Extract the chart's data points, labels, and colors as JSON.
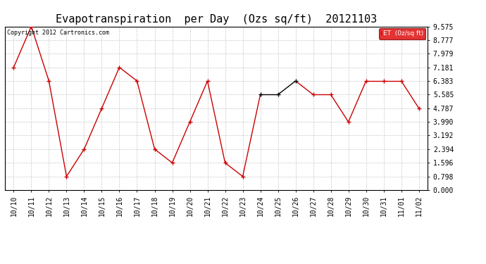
{
  "title": "Evapotranspiration  per Day  (Ozs sq/ft)  20121103",
  "copyright": "Copyright 2012 Cartronics.com",
  "legend_label": "ET  (0z/sq ft)",
  "legend_bg": "#dd0000",
  "legend_text_color": "#ffffff",
  "x_labels": [
    "10/10",
    "10/11",
    "10/12",
    "10/13",
    "10/14",
    "10/15",
    "10/16",
    "10/17",
    "10/18",
    "10/19",
    "10/20",
    "10/21",
    "10/22",
    "10/23",
    "10/24",
    "10/25",
    "10/26",
    "10/27",
    "10/28",
    "10/29",
    "10/30",
    "10/31",
    "11/01",
    "11/02"
  ],
  "y_values": [
    7.181,
    9.575,
    6.383,
    0.798,
    2.394,
    4.787,
    7.181,
    6.383,
    2.394,
    1.596,
    3.99,
    6.383,
    1.596,
    0.798,
    5.585,
    5.585,
    6.383,
    5.585,
    5.585,
    3.99,
    6.383,
    6.383,
    6.383,
    4.787
  ],
  "line_color_red": "#cc0000",
  "line_color_black": "#000000",
  "yticks": [
    0.0,
    0.798,
    1.596,
    2.394,
    3.192,
    3.99,
    4.787,
    5.585,
    6.383,
    7.181,
    7.979,
    8.777,
    9.575
  ],
  "ylim": [
    0.0,
    9.575
  ],
  "bg_color": "#ffffff",
  "grid_color": "#bbbbbb",
  "title_fontsize": 11,
  "tick_fontsize": 7,
  "copyright_fontsize": 6
}
